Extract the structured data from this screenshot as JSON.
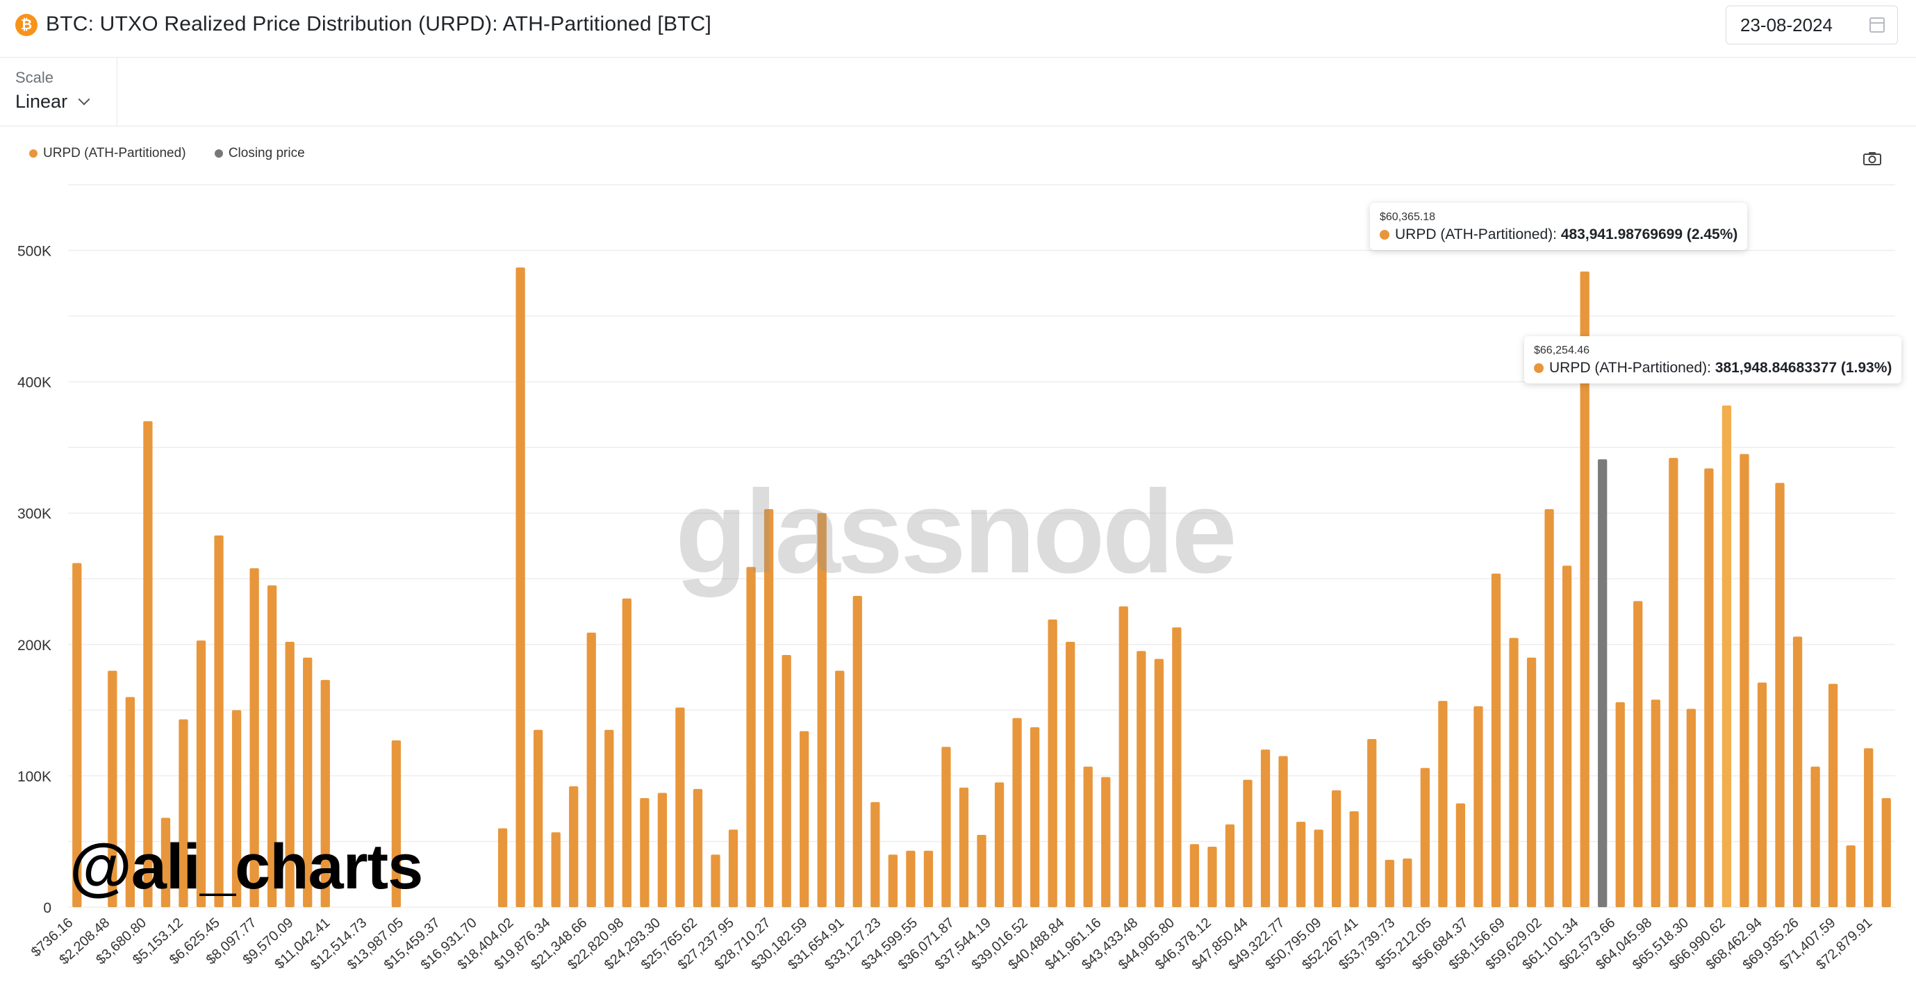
{
  "header": {
    "title": "BTC: UTXO Realized Price Distribution (URPD): ATH-Partitioned [BTC]",
    "logo_glyph": "₿",
    "date": "23-08-2024"
  },
  "toolbar": {
    "scale_label": "Scale",
    "scale_value": "Linear"
  },
  "legend": [
    {
      "label": "URPD (ATH-Partitioned)",
      "color": "#e8963b"
    },
    {
      "label": "Closing price",
      "color": "#777777"
    }
  ],
  "watermarks": {
    "handle": "@ali_charts",
    "logo": "glassnode"
  },
  "tooltips": [
    {
      "x_label": "$60,365.18",
      "series": "URPD (ATH-Partitioned)",
      "value": "483,941.98769699 (2.45%)"
    },
    {
      "x_label": "$66,254.46",
      "series": "URPD (ATH-Partitioned)",
      "value": "381,948.84683377 (1.93%)"
    }
  ],
  "chart_data": {
    "type": "bar",
    "ylim": [
      0,
      550000
    ],
    "yticks": [
      0,
      100000,
      200000,
      300000,
      400000,
      500000
    ],
    "ytick_labels": [
      "0",
      "100K",
      "200K",
      "300K",
      "400K",
      "500K"
    ],
    "xtick_labels": [
      "$736.16",
      "$2,208.48",
      "$3,680.80",
      "$5,153.12",
      "$6,625.45",
      "$8,097.77",
      "$9,570.09",
      "$11,042.41",
      "$12,514.73",
      "$13,987.05",
      "$15,459.37",
      "$16,931.70",
      "$18,404.02",
      "$19,876.34",
      "$21,348.66",
      "$22,820.98",
      "$24,293.30",
      "$25,765.62",
      "$27,237.95",
      "$28,710.27",
      "$30,182.59",
      "$31,654.91",
      "$33,127.23",
      "$34,599.55",
      "$36,071.87",
      "$37,544.19",
      "$39,016.52",
      "$40,488.84",
      "$41,961.16",
      "$43,433.48",
      "$44,905.80",
      "$46,378.12",
      "$47,850.44",
      "$49,322.77",
      "$50,795.09",
      "$52,267.41",
      "$53,739.73",
      "$55,212.05",
      "$56,684.37",
      "$58,156.69",
      "$59,629.02",
      "$61,101.34",
      "$62,573.66",
      "$64,045.98",
      "$65,518.30",
      "$66,990.62",
      "$68,462.94",
      "$69,935.26",
      "$71,407.59",
      "$72,879.91"
    ],
    "bucket_width": 736.16,
    "first_bucket": 736.16,
    "values": [
      262000,
      0,
      180000,
      160000,
      370000,
      68000,
      143000,
      203000,
      283000,
      150000,
      258000,
      245000,
      202000,
      190000,
      173000,
      0,
      0,
      0,
      127000,
      0,
      0,
      0,
      0,
      0,
      60000,
      487000,
      135000,
      57000,
      92000,
      209000,
      135000,
      235000,
      83000,
      87000,
      152000,
      90000,
      40000,
      59000,
      259000,
      303000,
      192000,
      134000,
      300000,
      180000,
      237000,
      80000,
      40000,
      43000,
      43000,
      122000,
      91000,
      55000,
      95000,
      144000,
      137000,
      219000,
      202000,
      107000,
      99000,
      229000,
      195000,
      189000,
      213000,
      48000,
      46000,
      63000,
      97000,
      120000,
      115000,
      65000,
      59000,
      89000,
      73000,
      128000,
      36000,
      37000,
      106000,
      157000,
      79000,
      153000,
      254000,
      205000,
      190000,
      303000,
      260000,
      483942,
      341000,
      156000,
      233000,
      158000,
      342000,
      151000,
      334000,
      381949,
      345000,
      171000,
      323000,
      206000,
      107000,
      170000,
      47000,
      121000,
      83000
    ],
    "closing_price_index": 86,
    "highlight_index": 93,
    "colors": {
      "bar": "#e8963b",
      "closing": "#7a7a7a",
      "highlight": "#f2ad4c",
      "grid": "#eeeeee"
    },
    "grid": true
  }
}
